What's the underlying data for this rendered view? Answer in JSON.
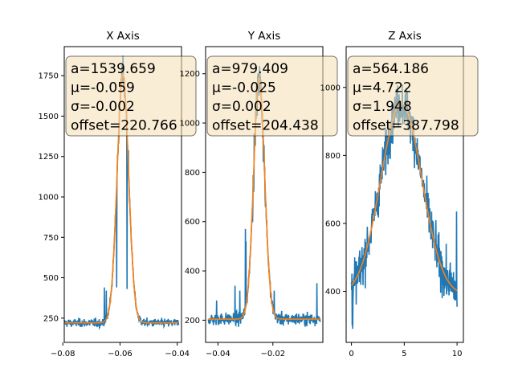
{
  "colors": {
    "data": "#1f77b4",
    "fit": "#ff7f0e",
    "box_fill": "#f5deb3",
    "box_edge": "#000000"
  },
  "chart_data": [
    {
      "type": "line",
      "title": "X Axis",
      "xlim": [
        -0.0795,
        -0.0385
      ],
      "ylim": [
        100,
        1930
      ],
      "xticks": [
        -0.08,
        -0.06,
        -0.04
      ],
      "xtick_labels": [
        "−0.08",
        "−0.06",
        "−0.04"
      ],
      "yticks": [
        250,
        500,
        750,
        1000,
        1250,
        1500,
        1750
      ],
      "ytick_labels": [
        "250",
        "500",
        "750",
        "1000",
        "1250",
        "1500",
        "1750"
      ],
      "data_x_range": [
        -0.0795,
        -0.0395
      ],
      "fit": {
        "a": 1539.659,
        "mu": -0.059,
        "sigma": -0.002,
        "offset": 220.766
      },
      "annotation": [
        "a=1539.659",
        "μ=-0.059",
        "σ=-0.002",
        "offset=220.766"
      ],
      "box_x": 0.0795
    },
    {
      "type": "line",
      "title": "Y Axis",
      "xlim": [
        -0.0445,
        -0.0018
      ],
      "ylim": [
        110,
        1310
      ],
      "xticks": [
        -0.04,
        -0.02
      ],
      "xtick_labels": [
        "−0.04",
        "−0.02"
      ],
      "yticks": [
        200,
        400,
        600,
        800,
        1000,
        1200
      ],
      "ytick_labels": [
        "200",
        "400",
        "600",
        "800",
        "1000",
        "1200"
      ],
      "data_x_range": [
        -0.0435,
        -0.0028
      ],
      "fit": {
        "a": 979.409,
        "mu": -0.025,
        "sigma": 0.002,
        "offset": 204.438
      },
      "annotation": [
        "a=979.409",
        "μ=-0.025",
        "σ=0.002",
        "offset=204.438"
      ],
      "box_x": 0.075
    },
    {
      "type": "line",
      "title": "Z Axis",
      "xlim": [
        -0.5,
        10.6
      ],
      "ylim": [
        250,
        1120
      ],
      "xticks": [
        0,
        5,
        10
      ],
      "xtick_labels": [
        "0",
        "5",
        "10"
      ],
      "yticks": [
        400,
        600,
        800,
        1000
      ],
      "ytick_labels": [
        "400",
        "600",
        "800",
        "1000"
      ],
      "data_x_range": [
        0,
        10
      ],
      "fit": {
        "a": 564.186,
        "mu": 4.722,
        "sigma": 1.948,
        "offset": 387.798
      },
      "annotation": [
        "a=564.186",
        "μ=4.722",
        "σ=1.948",
        "offset=387.798"
      ],
      "box_x": 0.075
    }
  ]
}
